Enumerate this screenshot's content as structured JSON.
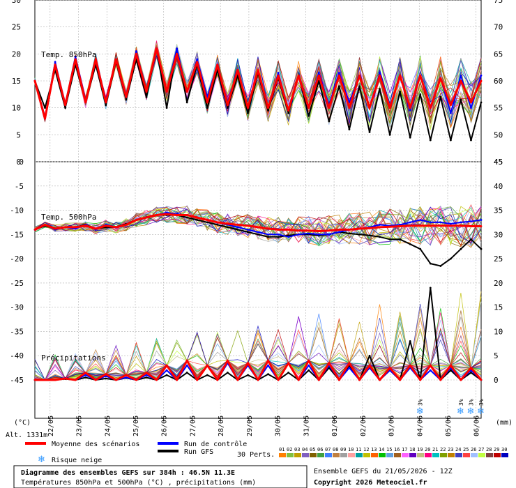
{
  "chart_data": [
    {
      "type": "line",
      "title": "Temp. 850hPa",
      "ylim_left": [
        0,
        30
      ],
      "y_ticks_left": [
        "30",
        "25",
        "20",
        "15",
        "10",
        "5",
        "0"
      ],
      "ylim_right": [
        45,
        75
      ],
      "y_ticks_right": [
        "75",
        "70",
        "65",
        "60",
        "55",
        "50",
        "45"
      ],
      "grid": true,
      "series": [
        {
          "name": "Moyenne des scénarios",
          "color": "#ff0000",
          "values": [
            15,
            8,
            18,
            10.5,
            19,
            11,
            19,
            11,
            19,
            12,
            20,
            13,
            21,
            13,
            20,
            13,
            18.5,
            11,
            18,
            10.5,
            17,
            10,
            17,
            10,
            16,
            9.5,
            16,
            10,
            16,
            10,
            16,
            10,
            16,
            10,
            16,
            10,
            16,
            10,
            16,
            10,
            15.5,
            10.5,
            15,
            11,
            15
          ]
        },
        {
          "name": "Run de contrôle",
          "color": "#0000ff",
          "values": [
            15,
            8,
            18.5,
            10.5,
            19.5,
            11,
            19,
            11.5,
            19,
            12,
            20.5,
            13,
            21,
            13,
            21,
            13,
            19,
            12,
            18,
            11,
            17,
            10,
            17,
            10,
            16.5,
            9.5,
            16,
            10,
            16.5,
            10.5,
            16.5,
            11,
            16,
            10,
            16.5,
            10,
            16,
            9.5,
            16,
            10,
            15.5,
            9,
            16,
            10,
            16
          ]
        },
        {
          "name": "Run GFS",
          "color": "#000000",
          "values": [
            15,
            10,
            17,
            10,
            18,
            11,
            18,
            10.5,
            18.5,
            11.5,
            19,
            12,
            21,
            10,
            21,
            11,
            18,
            10,
            17,
            10,
            16,
            9,
            16.5,
            9.5,
            15.5,
            9,
            16,
            8.5,
            15,
            7.5,
            14,
            6,
            14,
            5.5,
            13.5,
            5,
            13,
            4.5,
            12.5,
            4,
            12,
            4,
            11.5,
            4,
            11
          ]
        }
      ]
    },
    {
      "type": "line",
      "title": "Temp. 500hPa",
      "ylim_left": [
        -45,
        0
      ],
      "y_ticks_left": [
        "0",
        "-5",
        "-10",
        "-15",
        "-20",
        "-25",
        "-30",
        "-35",
        "-40",
        "-45"
      ],
      "grid": true,
      "series": [
        {
          "name": "Moyenne des scénarios",
          "color": "#ff0000",
          "values": [
            -14,
            -13,
            -13.8,
            -13.5,
            -13.5,
            -13.2,
            -13.8,
            -13.2,
            -13.5,
            -13,
            -12,
            -11.5,
            -11,
            -10.8,
            -11,
            -11,
            -11.5,
            -12,
            -12.5,
            -12.8,
            -13,
            -13.2,
            -13.5,
            -13.8,
            -14,
            -14,
            -14.2,
            -14.2,
            -14.3,
            -14.2,
            -14,
            -14,
            -13.8,
            -13.7,
            -13.5,
            -13.4,
            -13.3,
            -13.2,
            -13.2,
            -13.2,
            -13.2,
            -13.2,
            -13.2,
            -13.3,
            -13.3
          ]
        },
        {
          "name": "Run de contrôle",
          "color": "#0000ff",
          "values": [
            -14,
            -13,
            -14,
            -13.5,
            -13.8,
            -13,
            -14,
            -13,
            -13.5,
            -13,
            -12,
            -11.5,
            -11,
            -10.5,
            -10.8,
            -11,
            -11.5,
            -12,
            -12.5,
            -13,
            -13.5,
            -14,
            -14.5,
            -15,
            -15,
            -15.5,
            -15,
            -14.8,
            -15,
            -15,
            -14.5,
            -14,
            -13.8,
            -13.5,
            -13,
            -13.2,
            -13,
            -12.5,
            -12,
            -12.5,
            -12.5,
            -12.8,
            -12.5,
            -12.3,
            -12
          ]
        },
        {
          "name": "Run GFS",
          "color": "#000000",
          "values": [
            -14,
            -13.2,
            -13.8,
            -13.5,
            -13.5,
            -13,
            -13.8,
            -13.5,
            -13.5,
            -12.8,
            -12,
            -11.5,
            -11,
            -11,
            -11,
            -11.5,
            -12,
            -12.5,
            -13,
            -13.5,
            -14,
            -14.5,
            -15,
            -15.5,
            -15.5,
            -15.2,
            -15,
            -15,
            -15.2,
            -15,
            -14.5,
            -14.8,
            -15,
            -15.2,
            -15.5,
            -16,
            -16,
            -17,
            -18,
            -21,
            -21.5,
            -20,
            -18,
            -16,
            -18
          ]
        }
      ]
    },
    {
      "type": "line",
      "title": "Précipitations",
      "ylim_right": [
        0,
        45
      ],
      "y_ticks_right": [
        "45",
        "40",
        "35",
        "30",
        "25",
        "20",
        "15",
        "10",
        "5",
        "0"
      ],
      "unit": "(mm)",
      "series": [
        {
          "name": "Moyenne des scénarios",
          "color": "#ff0000",
          "values": [
            0,
            0,
            0,
            0.3,
            0,
            1.5,
            0,
            1.2,
            0,
            1,
            0,
            1.5,
            0,
            3,
            0,
            4,
            0,
            3,
            0,
            4,
            0,
            3.5,
            0,
            4,
            0,
            3.5,
            0,
            4,
            0,
            3.5,
            0,
            3.5,
            0,
            3,
            0,
            2.5,
            0,
            3,
            0,
            3,
            0,
            3,
            0,
            2.5,
            0
          ]
        },
        {
          "name": "Run de contrôle",
          "color": "#0000ff",
          "values": [
            0,
            0,
            0,
            0.4,
            0,
            1,
            0,
            0.8,
            0,
            0.5,
            0,
            1,
            0,
            2,
            0,
            3,
            0,
            3,
            0,
            3.5,
            0,
            3,
            0,
            3,
            0,
            3.5,
            0,
            3,
            0,
            3,
            0,
            2.5,
            0,
            2.5,
            0,
            2,
            0,
            2.5,
            0,
            2,
            0,
            2.5,
            0,
            2,
            0
          ]
        },
        {
          "name": "Run GFS",
          "color": "#000000",
          "values": [
            0,
            0,
            0,
            0.2,
            0,
            0.5,
            0,
            0.3,
            0,
            0.4,
            0,
            0.5,
            0,
            1,
            0,
            1.5,
            0,
            1,
            0,
            1.5,
            0,
            1,
            0,
            1.2,
            0,
            1.5,
            0,
            2,
            0,
            2.5,
            0,
            3,
            0,
            5,
            0,
            2,
            0,
            8,
            0,
            19,
            0,
            2,
            0,
            1.5,
            0
          ]
        }
      ]
    }
  ],
  "x_axis": {
    "dates": [
      "22/05",
      "23/05",
      "24/05",
      "25/05",
      "26/05",
      "27/05",
      "28/05",
      "29/05",
      "30/05",
      "31/05",
      "01/06",
      "02/06",
      "03/06",
      "04/06",
      "05/06",
      "06/06"
    ],
    "left_unit": "(°C)",
    "right_unit": "(mm)"
  },
  "snow_risk": [
    {
      "index": 38,
      "pct": "3%"
    },
    {
      "index": 42,
      "pct": "3%"
    },
    {
      "index": 43,
      "pct": "3%"
    },
    {
      "index": 44,
      "pct": "3%"
    }
  ],
  "legend": {
    "altitude": "Alt. 1331m",
    "mean_label": "Moyenne des scénarios",
    "control_label": "Run de contrôle",
    "gfs_label": "Run GFS",
    "snow_label": "Risque neige",
    "perts_label": "30 Perts.",
    "pert_ids": [
      "01",
      "02",
      "03",
      "04",
      "05",
      "06",
      "07",
      "08",
      "09",
      "10",
      "11",
      "12",
      "13",
      "14",
      "15",
      "16",
      "17",
      "18",
      "19",
      "20",
      "21",
      "22",
      "23",
      "24",
      "25",
      "26",
      "27",
      "28",
      "29",
      "30"
    ],
    "pert_colors": [
      "#ff8000",
      "#80c040",
      "#c0a000",
      "#8060c0",
      "#806000",
      "#40a040",
      "#4080ff",
      "#c08040",
      "#a0a0a0",
      "#ffa0a0",
      "#00a0a0",
      "#c0c000",
      "#ff6000",
      "#00c000",
      "#60a0e0",
      "#a06020",
      "#ff60ff",
      "#6000c0",
      "#c0c080",
      "#ff0080",
      "#00c0c0",
      "#80a000",
      "#c08000",
      "#4040c0",
      "#ff4040",
      "#a0c0ff",
      "#c0ff40",
      "#804040",
      "#c00000",
      "#0000c0"
    ]
  },
  "footer": {
    "title": "Diagramme des ensembles GEFS sur 384h : 46.5N 11.3E",
    "subtitle": "Températures 850hPa et 500hPa (°C) , précipitations (mm)",
    "run": "Ensemble GEFS du 21/05/2026 - 12Z",
    "copyright": "Copyright 2026 Meteociel.fr"
  },
  "colors": {
    "mean": "#ff0000",
    "control": "#0000ff",
    "gfs": "#000000",
    "grid": "#808080",
    "snow": "#3399ff"
  }
}
